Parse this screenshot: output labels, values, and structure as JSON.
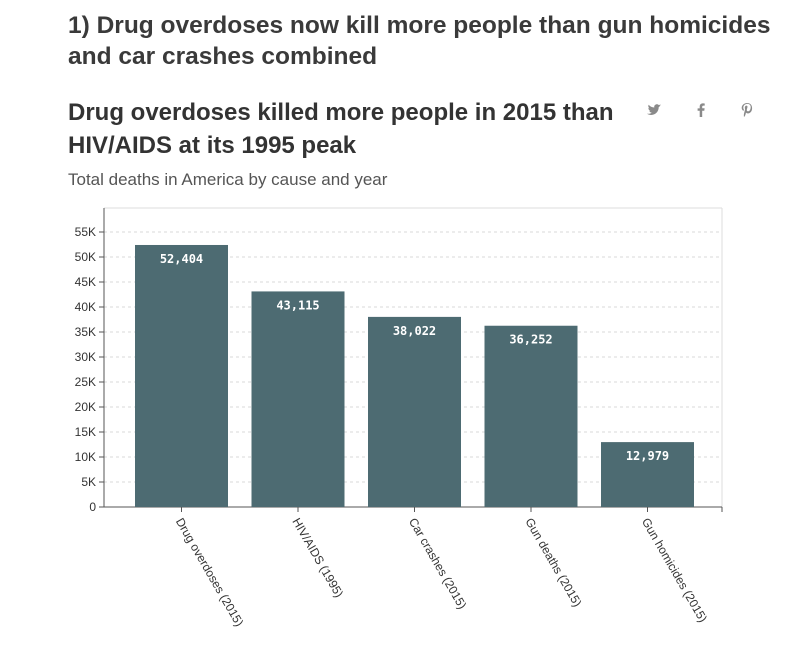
{
  "article": {
    "heading": "1) Drug overdoses now kill more people than gun homicides and car crashes combined"
  },
  "share": {
    "twitter_icon": "twitter-icon",
    "facebook_icon": "facebook-icon",
    "pinterest_icon": "pinterest-icon",
    "icon_color": "#8a8a8a"
  },
  "chart_data": {
    "type": "bar",
    "title": "Drug overdoses killed more people in 2015 than HIV/AIDS at its 1995 peak",
    "subtitle": "Total deaths in America by cause and year",
    "categories": [
      "Drug overdoses (2015)",
      "HIV/AIDS (1995)",
      "Car crashes (2015)",
      "Gun deaths (2015)",
      "Gun homicides (2015)"
    ],
    "values": [
      52404,
      43115,
      38022,
      36252,
      12979
    ],
    "value_labels": [
      "52,404",
      "43,115",
      "38,022",
      "36,252",
      "12,979"
    ],
    "ylim": [
      0,
      55000
    ],
    "yticks": [
      0,
      5000,
      10000,
      15000,
      20000,
      25000,
      30000,
      35000,
      40000,
      45000,
      50000,
      55000
    ],
    "ytick_labels": [
      "0",
      "5K",
      "10K",
      "15K",
      "20K",
      "25K",
      "30K",
      "35K",
      "40K",
      "45K",
      "50K",
      "55K"
    ],
    "xlabel": "",
    "ylabel": "",
    "grid": true,
    "bar_color": "#4d6b72"
  }
}
